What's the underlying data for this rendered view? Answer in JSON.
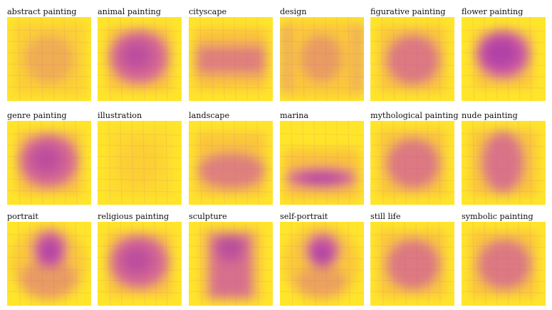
{
  "panels": [
    {
      "label": "abstract painting",
      "pattern": "frame-faint"
    },
    {
      "label": "animal painting",
      "pattern": "wide-center"
    },
    {
      "label": "cityscape",
      "pattern": "horizontal-band"
    },
    {
      "label": "design",
      "pattern": "frame-grid"
    },
    {
      "label": "figurative painting",
      "pattern": "soft-center"
    },
    {
      "label": "flower painting",
      "pattern": "dense-center"
    },
    {
      "label": "genre painting",
      "pattern": "wide-center"
    },
    {
      "label": "illustration",
      "pattern": "very-faint"
    },
    {
      "label": "landscape",
      "pattern": "lower-band"
    },
    {
      "label": "marina",
      "pattern": "bottom-horizontal"
    },
    {
      "label": "mythological painting",
      "pattern": "soft-center"
    },
    {
      "label": "nude painting",
      "pattern": "vertical-center"
    },
    {
      "label": "portrait",
      "pattern": "top-head"
    },
    {
      "label": "religious painting",
      "pattern": "wide-center"
    },
    {
      "label": "sculpture",
      "pattern": "vertical-column"
    },
    {
      "label": "self-portrait",
      "pattern": "head-circle"
    },
    {
      "label": "still life",
      "pattern": "soft-center"
    },
    {
      "label": "symbolic painting",
      "pattern": "soft-center"
    }
  ],
  "colors": {
    "background": "#ffe62a",
    "mid": "#f6a34b",
    "high": "#c84ab0",
    "peak": "#a83ca6"
  }
}
